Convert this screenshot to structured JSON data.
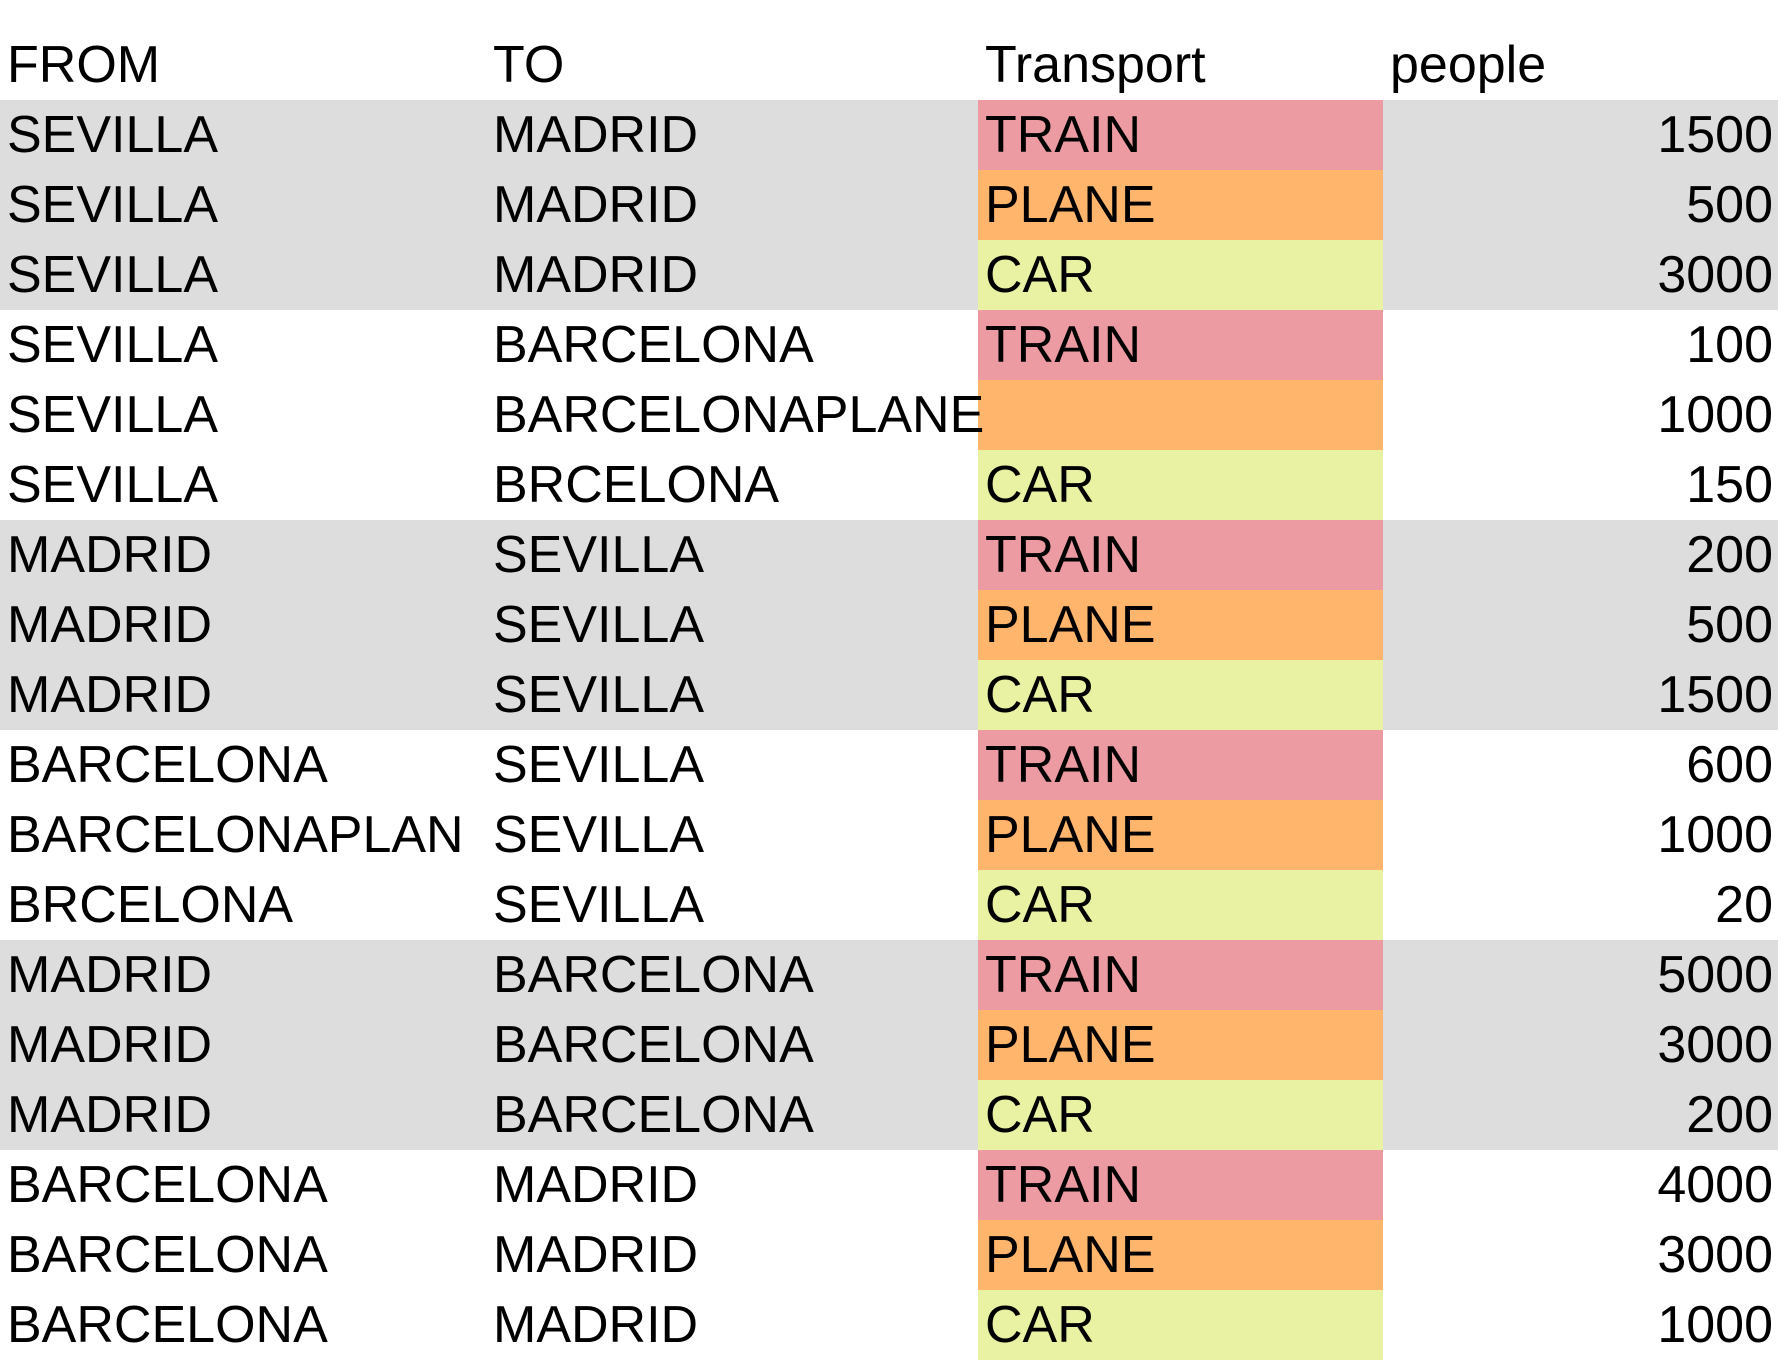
{
  "headers": {
    "from": "FROM",
    "to": "TO",
    "transport": "Transport",
    "people": "people"
  },
  "colors": {
    "TRAIN": "#ed9ba2",
    "PLANE": "#ffb56c",
    "CAR": "#e9f2a2",
    "shaded_row": "#dddddd"
  },
  "rows": [
    {
      "from": "SEVILLA",
      "to": "MADRID",
      "transport": "TRAIN",
      "people": "1500",
      "shaded": true,
      "transport_fill": "TRAIN"
    },
    {
      "from": "SEVILLA",
      "to": "MADRID",
      "transport": "PLANE",
      "people": "500",
      "shaded": true,
      "transport_fill": "PLANE"
    },
    {
      "from": "SEVILLA",
      "to": "MADRID",
      "transport": "CAR",
      "people": "3000",
      "shaded": true,
      "transport_fill": "CAR"
    },
    {
      "from": "SEVILLA",
      "to": "BARCELONA",
      "transport": "TRAIN",
      "people": "100",
      "shaded": false,
      "transport_fill": "TRAIN"
    },
    {
      "from": "SEVILLA",
      "to": "BARCELONAPLANE",
      "transport": "",
      "people": "1000",
      "shaded": false,
      "transport_fill": "PLANE"
    },
    {
      "from": "SEVILLA",
      "to": "BRCELONA",
      "transport": "CAR",
      "people": "150",
      "shaded": false,
      "transport_fill": "CAR"
    },
    {
      "from": "MADRID",
      "to": "SEVILLA",
      "transport": "TRAIN",
      "people": "200",
      "shaded": true,
      "transport_fill": "TRAIN"
    },
    {
      "from": "MADRID",
      "to": "SEVILLA",
      "transport": "PLANE",
      "people": "500",
      "shaded": true,
      "transport_fill": "PLANE"
    },
    {
      "from": "MADRID",
      "to": "SEVILLA",
      "transport": "CAR",
      "people": "1500",
      "shaded": true,
      "transport_fill": "CAR"
    },
    {
      "from": "BARCELONA",
      "to": "SEVILLA",
      "transport": "TRAIN",
      "people": "600",
      "shaded": false,
      "transport_fill": "TRAIN"
    },
    {
      "from": "BARCELONAPLAN",
      "to": "SEVILLA",
      "transport": "PLANE",
      "people": "1000",
      "shaded": false,
      "transport_fill": "PLANE"
    },
    {
      "from": "BRCELONA",
      "to": "SEVILLA",
      "transport": "CAR",
      "people": "20",
      "shaded": false,
      "transport_fill": "CAR"
    },
    {
      "from": "MADRID",
      "to": "BARCELONA",
      "transport": "TRAIN",
      "people": "5000",
      "shaded": true,
      "transport_fill": "TRAIN"
    },
    {
      "from": "MADRID",
      "to": "BARCELONA",
      "transport": "PLANE",
      "people": "3000",
      "shaded": true,
      "transport_fill": "PLANE"
    },
    {
      "from": "MADRID",
      "to": "BARCELONA",
      "transport": "CAR",
      "people": "200",
      "shaded": true,
      "transport_fill": "CAR"
    },
    {
      "from": "BARCELONA",
      "to": "MADRID",
      "transport": "TRAIN",
      "people": "4000",
      "shaded": false,
      "transport_fill": "TRAIN"
    },
    {
      "from": "BARCELONA",
      "to": "MADRID",
      "transport": "PLANE",
      "people": "3000",
      "shaded": false,
      "transport_fill": "PLANE"
    },
    {
      "from": "BARCELONA",
      "to": "MADRID",
      "transport": "CAR",
      "people": "1000",
      "shaded": false,
      "transport_fill": "CAR"
    }
  ]
}
